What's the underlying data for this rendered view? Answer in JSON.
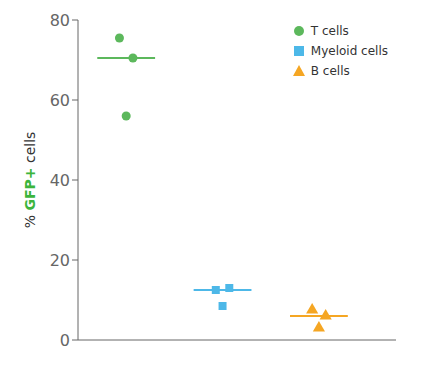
{
  "chart_data": {
    "type": "scatter",
    "y_label": [
      {
        "text": "% ",
        "color": "#333333"
      },
      {
        "text": "GFP+",
        "color": "#3cb53c"
      },
      {
        "text": " cells",
        "color": "#333333"
      }
    ],
    "series": [
      {
        "name": "T cells",
        "color": "#5cb85c",
        "marker": "circle",
        "values": [
          75.5,
          70.5,
          56.0
        ],
        "median": 70.5
      },
      {
        "name": "Myeloid cells",
        "color": "#4db8e8",
        "marker": "square",
        "values": [
          12.5,
          13.0,
          8.5
        ],
        "median": 12.5
      },
      {
        "name": "B cells",
        "color": "#f5a623",
        "marker": "triangle",
        "values": [
          7.5,
          6.0,
          3.0
        ],
        "median": 6.0
      }
    ],
    "ylim": [
      0,
      80
    ],
    "yticks": [
      0,
      20,
      40,
      60,
      80
    ],
    "tick_labels": "y",
    "grid": false,
    "legend": "upper right"
  }
}
